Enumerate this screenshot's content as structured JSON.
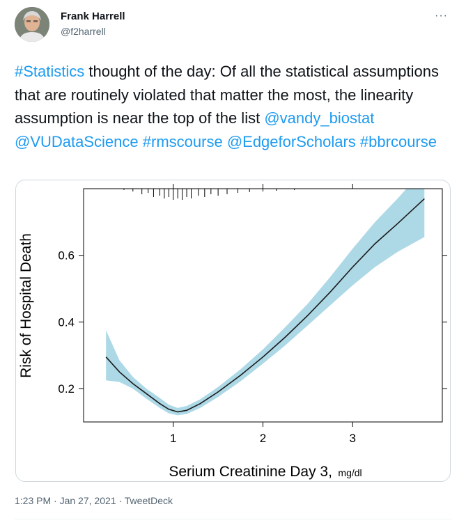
{
  "author": {
    "name": "Frank Harrell",
    "handle": "@f2harrell"
  },
  "more_label": "···",
  "tweet": {
    "segments": [
      {
        "text": "#Statistics",
        "link": true
      },
      {
        "text": " thought of the day: Of all the statistical assumptions that are routinely violated that matter the most, the linearity assumption is near the top of the list ",
        "link": false
      },
      {
        "text": "@vandy_biostat",
        "link": true
      },
      {
        "text": " ",
        "link": false
      },
      {
        "text": "@VUDataScience",
        "link": true
      },
      {
        "text": " ",
        "link": false
      },
      {
        "text": "#rmscourse",
        "link": true
      },
      {
        "text": " ",
        "link": false
      },
      {
        "text": "@EdgeforScholars",
        "link": true
      },
      {
        "text": " ",
        "link": false
      },
      {
        "text": "#bbrcourse",
        "link": true
      }
    ]
  },
  "meta": {
    "time": "1:23 PM",
    "date": "Jan 27, 2021",
    "source": "TweetDeck",
    "separator": "·"
  },
  "colors": {
    "link": "#1d9bf0",
    "band": "#add8e6",
    "curve": "#1a1a1a"
  },
  "chart_data": {
    "type": "line",
    "title": "",
    "xlabel": "Serium Creatinine Day 3,",
    "xlabel_unit": "mg/dl",
    "ylabel": "Risk of Hospital Death",
    "xlim": [
      0.0,
      4.0
    ],
    "ylim": [
      0.1,
      0.8
    ],
    "x_ticks": [
      1,
      2,
      3
    ],
    "x_tick_labels": [
      "1",
      "2",
      "3"
    ],
    "y_ticks": [
      0.2,
      0.4,
      0.6
    ],
    "y_tick_labels": [
      "0.2",
      "0.4",
      "0.6"
    ],
    "grid": false,
    "series": [
      {
        "x": [
          0.25,
          0.4,
          0.55,
          0.7,
          0.85,
          0.95,
          1.05,
          1.15,
          1.3,
          1.5,
          1.75,
          2.0,
          2.25,
          2.5,
          2.75,
          3.0,
          3.25,
          3.5,
          3.8
        ],
        "y": [
          0.295,
          0.25,
          0.215,
          0.185,
          0.155,
          0.138,
          0.13,
          0.135,
          0.155,
          0.19,
          0.24,
          0.295,
          0.355,
          0.42,
          0.49,
          0.565,
          0.635,
          0.695,
          0.77
        ],
        "lower": [
          0.225,
          0.22,
          0.2,
          0.17,
          0.142,
          0.126,
          0.12,
          0.124,
          0.142,
          0.175,
          0.222,
          0.275,
          0.33,
          0.39,
          0.45,
          0.51,
          0.565,
          0.61,
          0.655
        ],
        "upper": [
          0.375,
          0.285,
          0.235,
          0.2,
          0.172,
          0.152,
          0.142,
          0.148,
          0.168,
          0.205,
          0.258,
          0.318,
          0.385,
          0.455,
          0.535,
          0.62,
          0.7,
          0.77,
          0.86
        ]
      }
    ],
    "rug_x": [
      0.45,
      0.55,
      0.65,
      0.72,
      0.78,
      0.85,
      0.9,
      0.95,
      1.0,
      1.05,
      1.1,
      1.15,
      1.2,
      1.28,
      1.35,
      1.42,
      1.5,
      1.6,
      1.72,
      1.85,
      2.0,
      2.15,
      2.35
    ],
    "rug_h": [
      2,
      4,
      8,
      6,
      12,
      10,
      14,
      12,
      16,
      14,
      16,
      12,
      14,
      10,
      12,
      8,
      10,
      8,
      6,
      5,
      4,
      3,
      2
    ]
  }
}
